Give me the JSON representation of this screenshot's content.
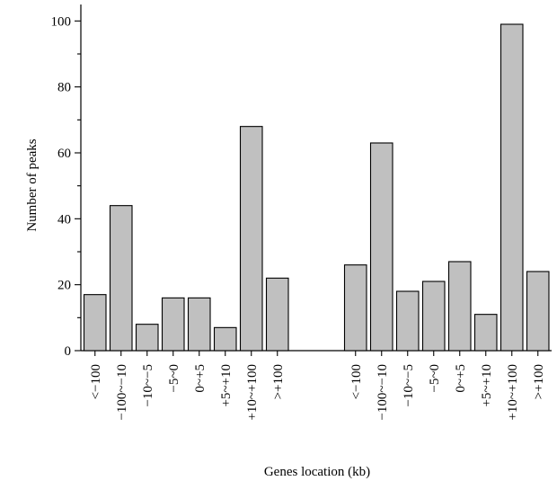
{
  "chart_data": {
    "type": "bar",
    "title": "",
    "xlabel": "Genes location (kb)",
    "ylabel": "Number of peaks",
    "ylim": [
      0,
      105
    ],
    "yticks": [
      0,
      20,
      40,
      60,
      80,
      100
    ],
    "grid": false,
    "bar_color": "#c0c0c0",
    "groups": [
      {
        "categories": [
          "<−100",
          "−100~−10",
          "−10~−5",
          "−5~0",
          "0~+5",
          "+5~+10",
          "+10~+100",
          ">+100"
        ],
        "values": [
          17,
          44,
          8,
          16,
          16,
          7,
          68,
          22
        ]
      },
      {
        "categories": [
          "<−100",
          "−100~−10",
          "−10~−5",
          "−5~0",
          "0~+5",
          "+5~+10",
          "+10~+100",
          ">+100"
        ],
        "values": [
          26,
          63,
          18,
          21,
          27,
          11,
          99,
          24
        ]
      }
    ]
  }
}
